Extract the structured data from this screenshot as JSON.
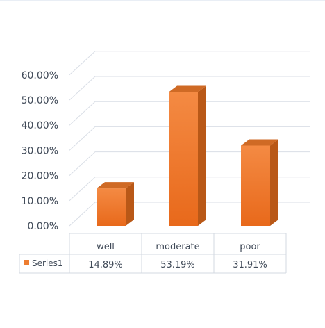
{
  "chart_data": {
    "type": "bar",
    "title": "",
    "xlabel": "",
    "ylabel": "",
    "categories": [
      "well",
      "moderate",
      "poor"
    ],
    "series": [
      {
        "name": "Series1",
        "values": [
          14.89,
          53.19,
          31.91
        ],
        "labels": [
          "14.89%",
          "53.19%",
          "31.91%"
        ],
        "color": "#ed7d31"
      }
    ],
    "y_ticks": [
      "0.00%",
      "10.00%",
      "20.00%",
      "30.00%",
      "40.00%",
      "50.00%",
      "60.00%"
    ],
    "ylim": [
      0,
      60
    ],
    "grid": true,
    "style": "3d-column",
    "data_table": true,
    "legend": "data-table"
  }
}
